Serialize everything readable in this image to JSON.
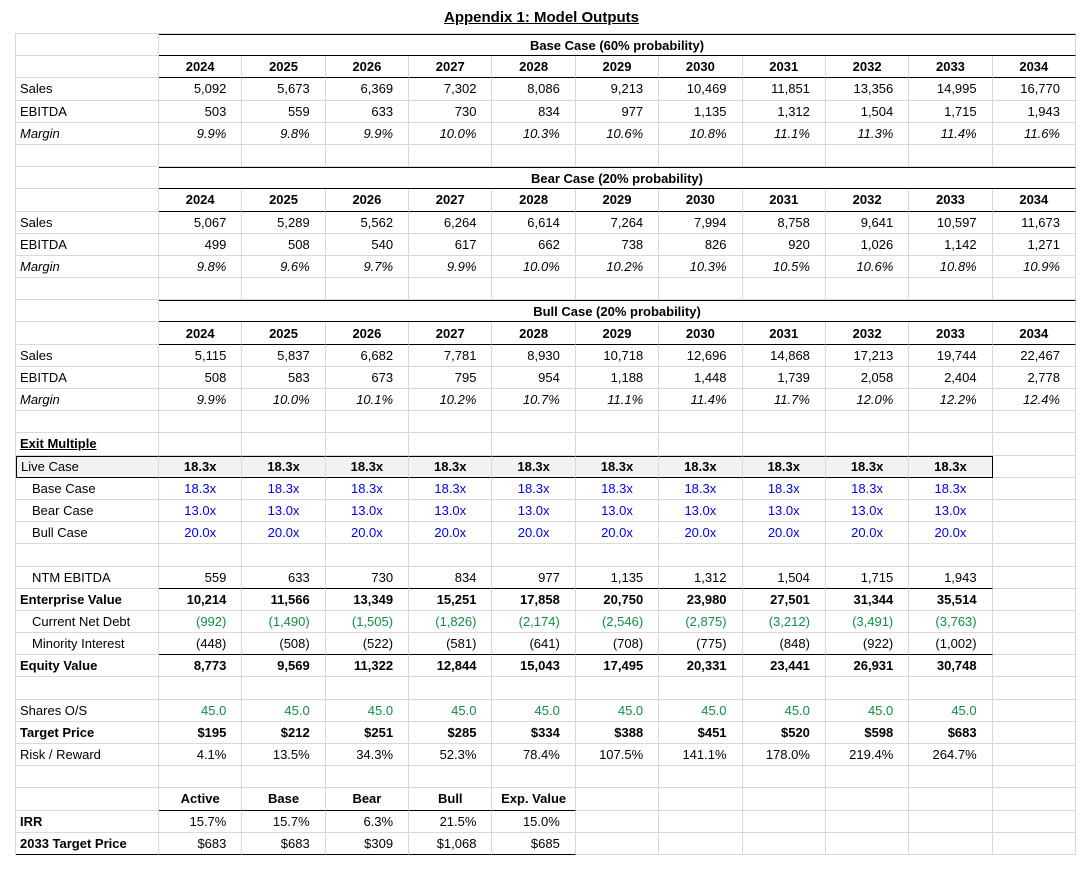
{
  "title": "Appendix 1: Model Outputs",
  "years": [
    "2024",
    "2025",
    "2026",
    "2027",
    "2028",
    "2029",
    "2030",
    "2031",
    "2032",
    "2033",
    "2034"
  ],
  "labels": {
    "sales": "Sales",
    "ebitda": "EBITDA",
    "margin": "Margin"
  },
  "cases": [
    {
      "key": "base-case",
      "header": "Base Case (60% probability)",
      "sales": [
        "5,092",
        "5,673",
        "6,369",
        "7,302",
        "8,086",
        "9,213",
        "10,469",
        "11,851",
        "13,356",
        "14,995",
        "16,770"
      ],
      "ebitda": [
        "503",
        "559",
        "633",
        "730",
        "834",
        "977",
        "1,135",
        "1,312",
        "1,504",
        "1,715",
        "1,943"
      ],
      "margin": [
        "9.9%",
        "9.8%",
        "9.9%",
        "10.0%",
        "10.3%",
        "10.6%",
        "10.8%",
        "11.1%",
        "11.3%",
        "11.4%",
        "11.6%"
      ]
    },
    {
      "key": "bear-case",
      "header": "Bear Case (20% probability)",
      "sales": [
        "5,067",
        "5,289",
        "5,562",
        "6,264",
        "6,614",
        "7,264",
        "7,994",
        "8,758",
        "9,641",
        "10,597",
        "11,673"
      ],
      "ebitda": [
        "499",
        "508",
        "540",
        "617",
        "662",
        "738",
        "826",
        "920",
        "1,026",
        "1,142",
        "1,271"
      ],
      "margin": [
        "9.8%",
        "9.6%",
        "9.7%",
        "9.9%",
        "10.0%",
        "10.2%",
        "10.3%",
        "10.5%",
        "10.6%",
        "10.8%",
        "10.9%"
      ]
    },
    {
      "key": "bull-case",
      "header": "Bull Case (20% probability)",
      "sales": [
        "5,115",
        "5,837",
        "6,682",
        "7,781",
        "8,930",
        "10,718",
        "12,696",
        "14,868",
        "17,213",
        "19,744",
        "22,467"
      ],
      "ebitda": [
        "508",
        "583",
        "673",
        "795",
        "954",
        "1,188",
        "1,448",
        "1,739",
        "2,058",
        "2,404",
        "2,778"
      ],
      "margin": [
        "9.9%",
        "10.0%",
        "10.1%",
        "10.2%",
        "10.7%",
        "11.1%",
        "11.4%",
        "11.7%",
        "12.0%",
        "12.2%",
        "12.4%"
      ]
    }
  ],
  "exit": {
    "heading": "Exit Multiple",
    "rows": [
      {
        "key": "live-case",
        "label": "Live Case",
        "values": [
          "18.3x",
          "18.3x",
          "18.3x",
          "18.3x",
          "18.3x",
          "18.3x",
          "18.3x",
          "18.3x",
          "18.3x",
          "18.3x"
        ]
      },
      {
        "key": "base-case",
        "label": "Base Case",
        "values": [
          "18.3x",
          "18.3x",
          "18.3x",
          "18.3x",
          "18.3x",
          "18.3x",
          "18.3x",
          "18.3x",
          "18.3x",
          "18.3x"
        ]
      },
      {
        "key": "bear-case",
        "label": "Bear Case",
        "values": [
          "13.0x",
          "13.0x",
          "13.0x",
          "13.0x",
          "13.0x",
          "13.0x",
          "13.0x",
          "13.0x",
          "13.0x",
          "13.0x"
        ]
      },
      {
        "key": "bull-case",
        "label": "Bull Case",
        "values": [
          "20.0x",
          "20.0x",
          "20.0x",
          "20.0x",
          "20.0x",
          "20.0x",
          "20.0x",
          "20.0x",
          "20.0x",
          "20.0x"
        ]
      }
    ]
  },
  "valuation": {
    "rows": [
      {
        "key": "ntm-ebitda",
        "label": "NTM EBITDA",
        "values": [
          "559",
          "633",
          "730",
          "834",
          "977",
          "1,135",
          "1,312",
          "1,504",
          "1,715",
          "1,943"
        ]
      },
      {
        "key": "enterprise-value",
        "label": "Enterprise Value",
        "values": [
          "10,214",
          "11,566",
          "13,349",
          "15,251",
          "17,858",
          "20,750",
          "23,980",
          "27,501",
          "31,344",
          "35,514"
        ]
      },
      {
        "key": "current-net-debt",
        "label": "Current Net Debt",
        "values": [
          "(992)",
          "(1,490)",
          "(1,505)",
          "(1,826)",
          "(2,174)",
          "(2,546)",
          "(2,875)",
          "(3,212)",
          "(3,491)",
          "(3,763)"
        ]
      },
      {
        "key": "minority-interest",
        "label": "Minority Interest",
        "values": [
          "(448)",
          "(508)",
          "(522)",
          "(581)",
          "(641)",
          "(708)",
          "(775)",
          "(848)",
          "(922)",
          "(1,002)"
        ]
      },
      {
        "key": "equity-value",
        "label": "Equity Value",
        "values": [
          "8,773",
          "9,569",
          "11,322",
          "12,844",
          "15,043",
          "17,495",
          "20,331",
          "23,441",
          "26,931",
          "30,748"
        ]
      }
    ]
  },
  "per_share": {
    "rows": [
      {
        "key": "shares-os",
        "label": "Shares O/S",
        "values": [
          "45.0",
          "45.0",
          "45.0",
          "45.0",
          "45.0",
          "45.0",
          "45.0",
          "45.0",
          "45.0",
          "45.0"
        ]
      },
      {
        "key": "target-price",
        "label": "Target Price",
        "values": [
          "$195",
          "$212",
          "$251",
          "$285",
          "$334",
          "$388",
          "$451",
          "$520",
          "$598",
          "$683"
        ]
      },
      {
        "key": "risk-reward",
        "label": "Risk / Reward",
        "values": [
          "4.1%",
          "13.5%",
          "34.3%",
          "52.3%",
          "78.4%",
          "107.5%",
          "141.1%",
          "178.0%",
          "219.4%",
          "264.7%"
        ]
      }
    ]
  },
  "scenario": {
    "headers": [
      "Active",
      "Base",
      "Bear",
      "Bull",
      "Exp. Value"
    ],
    "rows": [
      {
        "key": "irr",
        "label": "IRR",
        "values": [
          "15.7%",
          "15.7%",
          "6.3%",
          "21.5%",
          "15.0%"
        ]
      },
      {
        "key": "target-price-2033",
        "label": "2033 Target Price",
        "values": [
          "$683",
          "$683",
          "$309",
          "$1,068",
          "$685"
        ]
      }
    ]
  },
  "colors": {
    "accent_blue": "#0000EE",
    "accent_green": "#0F8F42",
    "gridline": "#D9D9D9",
    "live_case_fill": "#F2F2F2",
    "section_border": "#000000"
  }
}
